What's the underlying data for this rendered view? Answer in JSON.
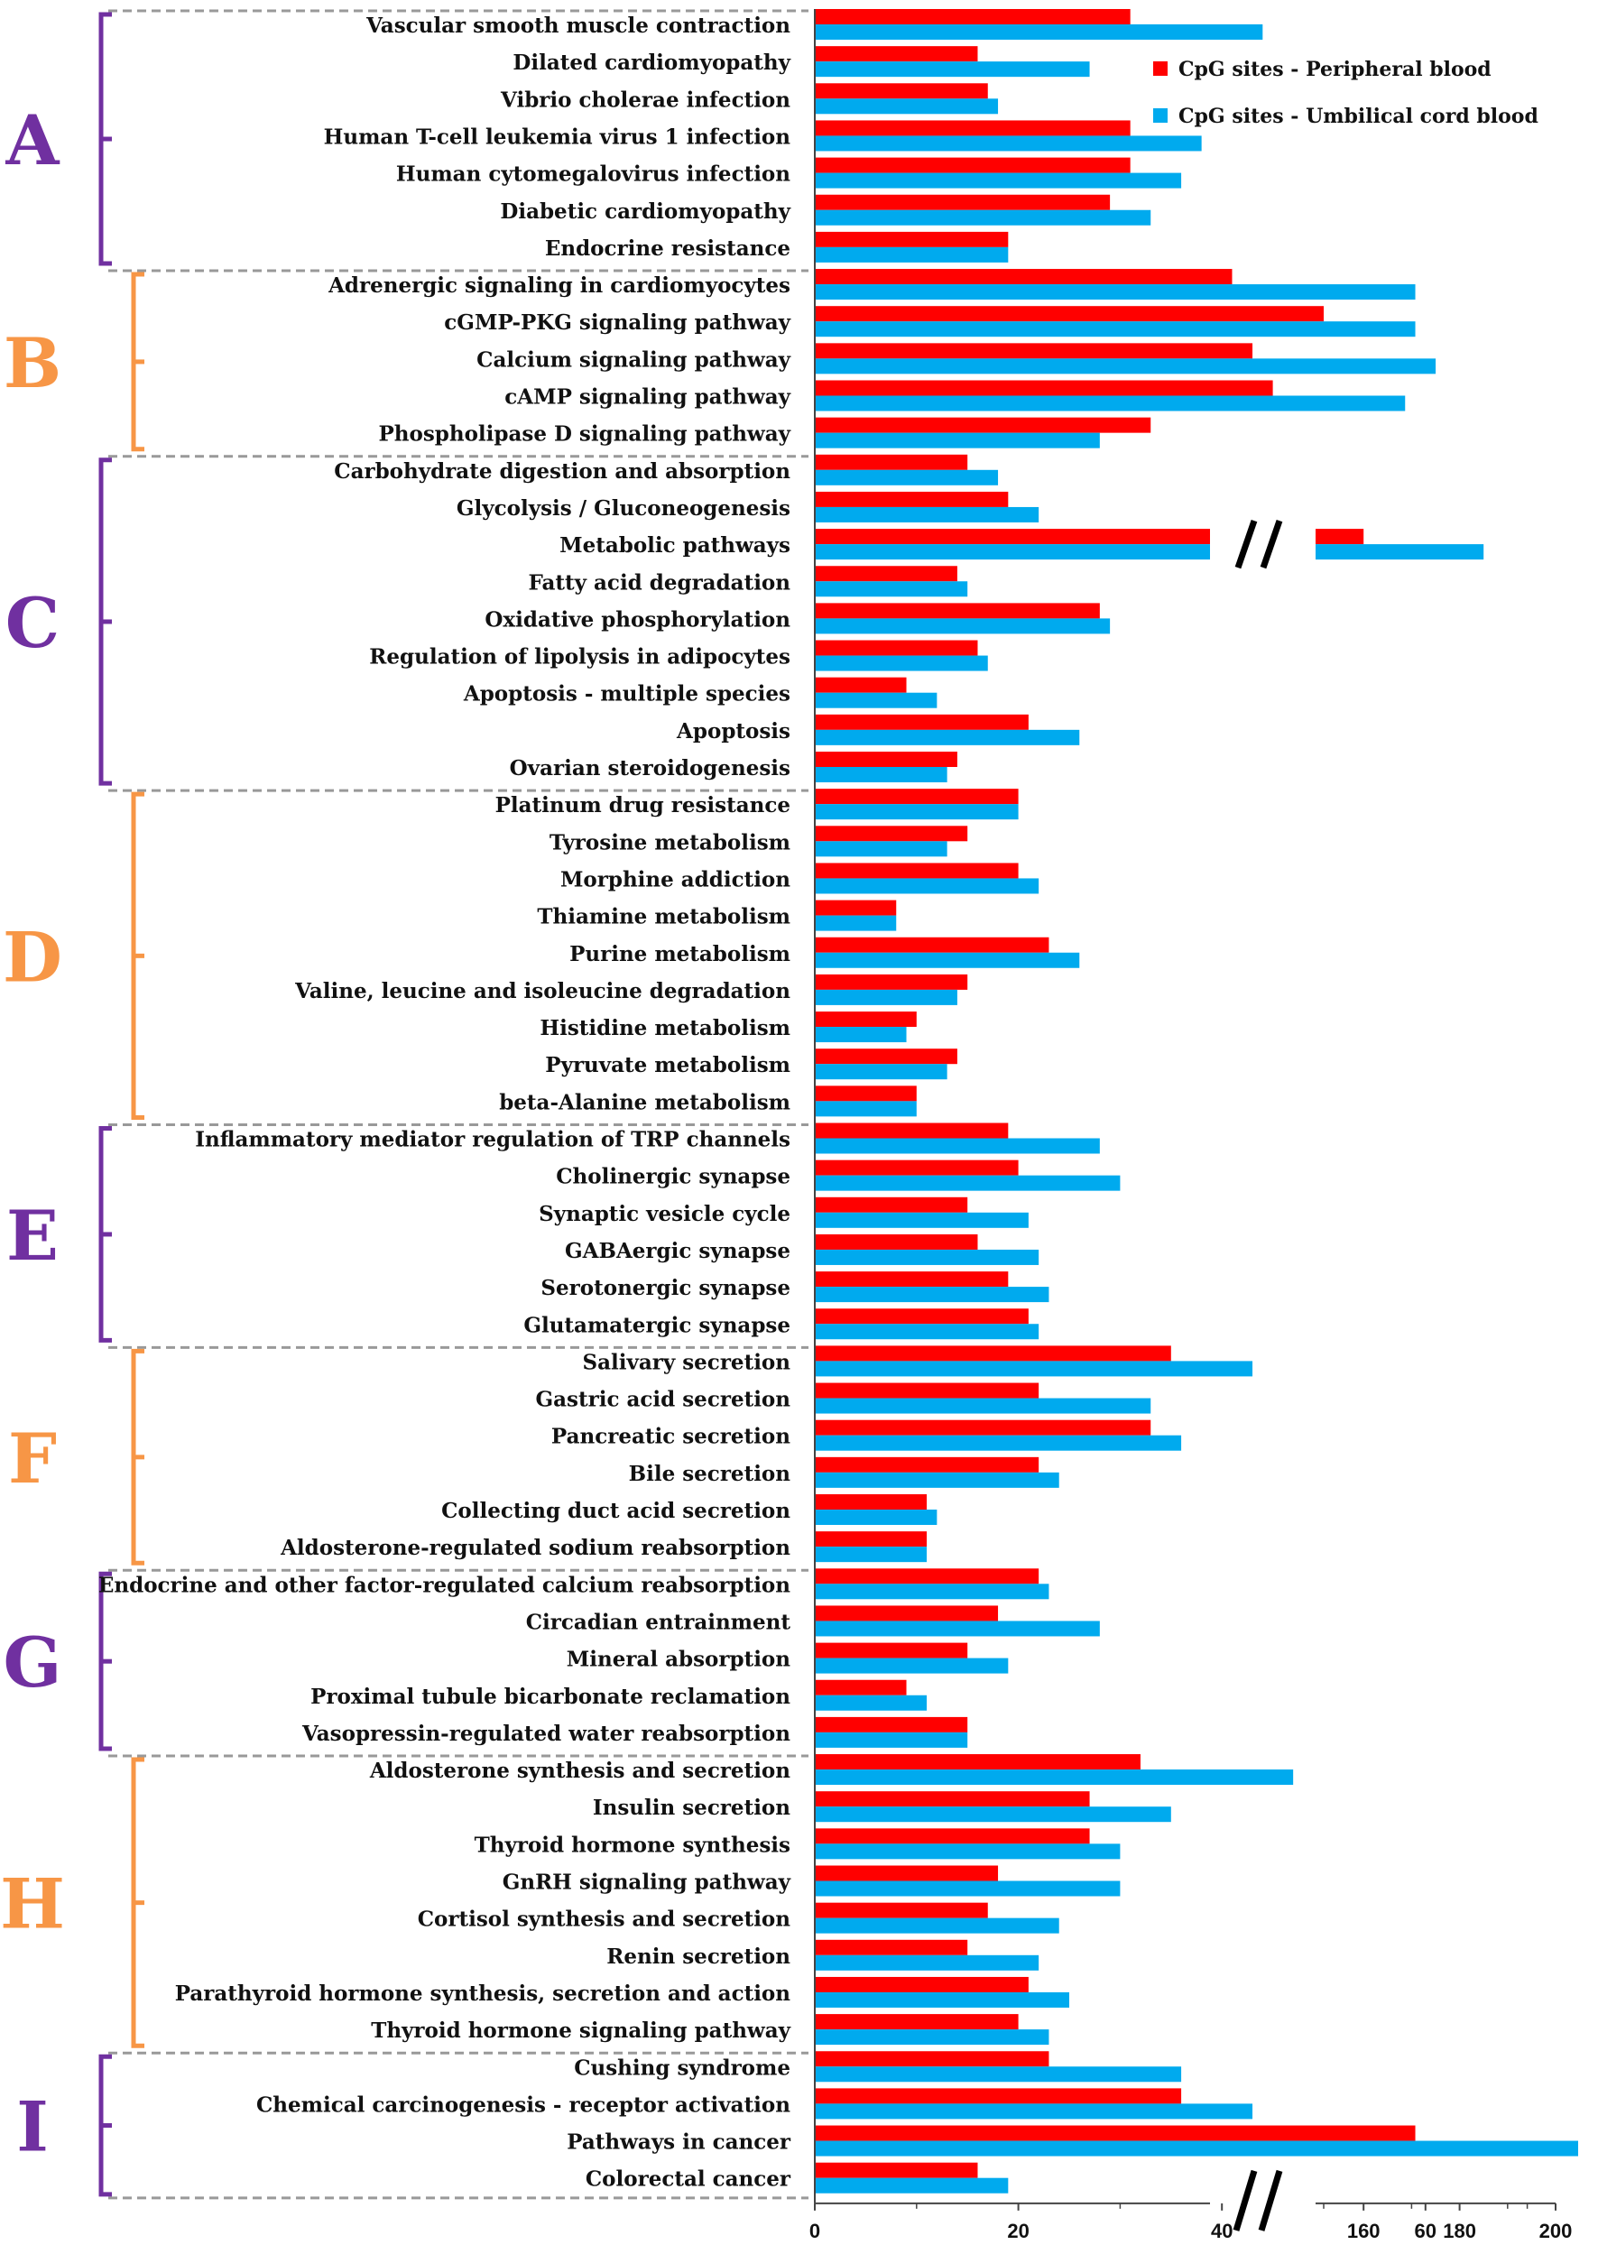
{
  "chart_data": {
    "type": "bar",
    "orientation": "horizontal",
    "axis_break": {
      "from": 77,
      "to": 150
    },
    "xlim": [
      0,
      200
    ],
    "x_ticks": [
      0,
      20,
      40,
      60,
      160,
      180,
      200
    ],
    "legend": {
      "position": "top-right"
    },
    "colors": {
      "peripheral": "#ff0000",
      "umbilical": "#00aaee",
      "group_purple": "#7030a0",
      "group_orange": "#f79646"
    },
    "series": [
      {
        "name": "CpG sites - Peripheral blood",
        "key": "peripheral"
      },
      {
        "name": "CpG sites - Umbilical cord blood",
        "key": "umbilical"
      }
    ],
    "groups": [
      {
        "letter": "A",
        "color": "purple",
        "items": [
          {
            "label": "Vascular smooth muscle contraction",
            "peripheral": 31,
            "umbilical": 44
          },
          {
            "label": "Dilated cardiomyopathy",
            "peripheral": 16,
            "umbilical": 27
          },
          {
            "label": "Vibrio cholerae infection",
            "peripheral": 17,
            "umbilical": 18
          },
          {
            "label": "Human T-cell leukemia virus 1 infection",
            "peripheral": 31,
            "umbilical": 38
          },
          {
            "label": "Human cytomegalovirus infection",
            "peripheral": 31,
            "umbilical": 36
          },
          {
            "label": "Diabetic cardiomyopathy",
            "peripheral": 29,
            "umbilical": 33
          },
          {
            "label": "Endocrine resistance",
            "peripheral": 19,
            "umbilical": 19
          }
        ]
      },
      {
        "letter": "B",
        "color": "orange",
        "items": [
          {
            "label": "Adrenergic signaling in cardiomyocytes",
            "peripheral": 41,
            "umbilical": 59
          },
          {
            "label": "cGMP-PKG signaling pathway",
            "peripheral": 50,
            "umbilical": 59
          },
          {
            "label": "Calcium signaling pathway",
            "peripheral": 43,
            "umbilical": 61
          },
          {
            "label": "cAMP signaling pathway",
            "peripheral": 45,
            "umbilical": 58
          },
          {
            "label": "Phospholipase D signaling pathway",
            "peripheral": 33,
            "umbilical": 28
          }
        ]
      },
      {
        "letter": "C",
        "color": "purple",
        "items": [
          {
            "label": "Carbohydrate digestion and absorption",
            "peripheral": 15,
            "umbilical": 18
          },
          {
            "label": "Glycolysis / Gluconeogenesis",
            "peripheral": 19,
            "umbilical": 22
          },
          {
            "label": "Metabolic pathways",
            "peripheral": 160,
            "umbilical": 185
          },
          {
            "label": "Fatty acid degradation",
            "peripheral": 14,
            "umbilical": 15
          },
          {
            "label": "Oxidative phosphorylation",
            "peripheral": 28,
            "umbilical": 29
          },
          {
            "label": "Regulation of lipolysis in adipocytes",
            "peripheral": 16,
            "umbilical": 17
          },
          {
            "label": "Apoptosis - multiple species",
            "peripheral": 9,
            "umbilical": 12
          },
          {
            "label": "Apoptosis",
            "peripheral": 21,
            "umbilical": 26
          },
          {
            "label": "Ovarian steroidogenesis",
            "peripheral": 14,
            "umbilical": 13
          }
        ]
      },
      {
        "letter": "D",
        "color": "orange",
        "items": [
          {
            "label": "Platinum drug resistance",
            "peripheral": 20,
            "umbilical": 20
          },
          {
            "label": "Tyrosine metabolism",
            "peripheral": 15,
            "umbilical": 13
          },
          {
            "label": "Morphine addiction",
            "peripheral": 20,
            "umbilical": 22
          },
          {
            "label": "Thiamine metabolism",
            "peripheral": 8,
            "umbilical": 8
          },
          {
            "label": "Purine metabolism",
            "peripheral": 23,
            "umbilical": 26
          },
          {
            "label": "Valine, leucine and isoleucine degradation",
            "peripheral": 15,
            "umbilical": 14
          },
          {
            "label": "Histidine metabolism",
            "peripheral": 10,
            "umbilical": 9
          },
          {
            "label": "Pyruvate metabolism",
            "peripheral": 14,
            "umbilical": 13
          },
          {
            "label": "beta-Alanine metabolism",
            "peripheral": 10,
            "umbilical": 10
          }
        ]
      },
      {
        "letter": "E",
        "color": "purple",
        "items": [
          {
            "label": "Inflammatory mediator regulation of TRP channels",
            "peripheral": 19,
            "umbilical": 28
          },
          {
            "label": "Cholinergic synapse",
            "peripheral": 20,
            "umbilical": 30
          },
          {
            "label": "Synaptic vesicle cycle",
            "peripheral": 15,
            "umbilical": 21
          },
          {
            "label": "GABAergic synapse",
            "peripheral": 16,
            "umbilical": 22
          },
          {
            "label": "Serotonergic synapse",
            "peripheral": 19,
            "umbilical": 23
          },
          {
            "label": "Glutamatergic synapse",
            "peripheral": 21,
            "umbilical": 22
          }
        ]
      },
      {
        "letter": "F",
        "color": "orange",
        "items": [
          {
            "label": "Salivary secretion",
            "peripheral": 35,
            "umbilical": 43
          },
          {
            "label": "Gastric acid secretion",
            "peripheral": 22,
            "umbilical": 33
          },
          {
            "label": "Pancreatic secretion",
            "peripheral": 33,
            "umbilical": 36
          },
          {
            "label": "Bile secretion",
            "peripheral": 22,
            "umbilical": 24
          },
          {
            "label": "Collecting duct acid secretion",
            "peripheral": 11,
            "umbilical": 12
          },
          {
            "label": "Aldosterone-regulated sodium reabsorption",
            "peripheral": 11,
            "umbilical": 11
          }
        ]
      },
      {
        "letter": "G",
        "color": "purple",
        "items": [
          {
            "label": "Endocrine and other factor-regulated calcium reabsorption",
            "peripheral": 22,
            "umbilical": 23
          },
          {
            "label": "Circadian entrainment",
            "peripheral": 18,
            "umbilical": 28
          },
          {
            "label": "Mineral absorption",
            "peripheral": 15,
            "umbilical": 19
          },
          {
            "label": "Proximal tubule bicarbonate reclamation",
            "peripheral": 9,
            "umbilical": 11
          },
          {
            "label": "Vasopressin-regulated water reabsorption",
            "peripheral": 15,
            "umbilical": 15
          }
        ]
      },
      {
        "letter": "H",
        "color": "orange",
        "items": [
          {
            "label": "Aldosterone synthesis and secretion",
            "peripheral": 32,
            "umbilical": 47
          },
          {
            "label": "Insulin secretion",
            "peripheral": 27,
            "umbilical": 35
          },
          {
            "label": "Thyroid hormone synthesis",
            "peripheral": 27,
            "umbilical": 30
          },
          {
            "label": "GnRH signaling pathway",
            "peripheral": 18,
            "umbilical": 30
          },
          {
            "label": "Cortisol synthesis and secretion",
            "peripheral": 17,
            "umbilical": 24
          },
          {
            "label": "Renin secretion",
            "peripheral": 15,
            "umbilical": 22
          },
          {
            "label": "Parathyroid hormone synthesis, secretion and action",
            "peripheral": 21,
            "umbilical": 25
          },
          {
            "label": "Thyroid hormone signaling pathway",
            "peripheral": 20,
            "umbilical": 23
          }
        ]
      },
      {
        "letter": "I",
        "color": "purple",
        "items": [
          {
            "label": "Cushing syndrome",
            "peripheral": 23,
            "umbilical": 36
          },
          {
            "label": "Chemical carcinogenesis - receptor activation",
            "peripheral": 36,
            "umbilical": 43
          },
          {
            "label": "Pathways in cancer",
            "peripheral": 59,
            "umbilical": 75
          },
          {
            "label": "Colorectal cancer",
            "peripheral": 16,
            "umbilical": 19
          }
        ]
      }
    ]
  }
}
